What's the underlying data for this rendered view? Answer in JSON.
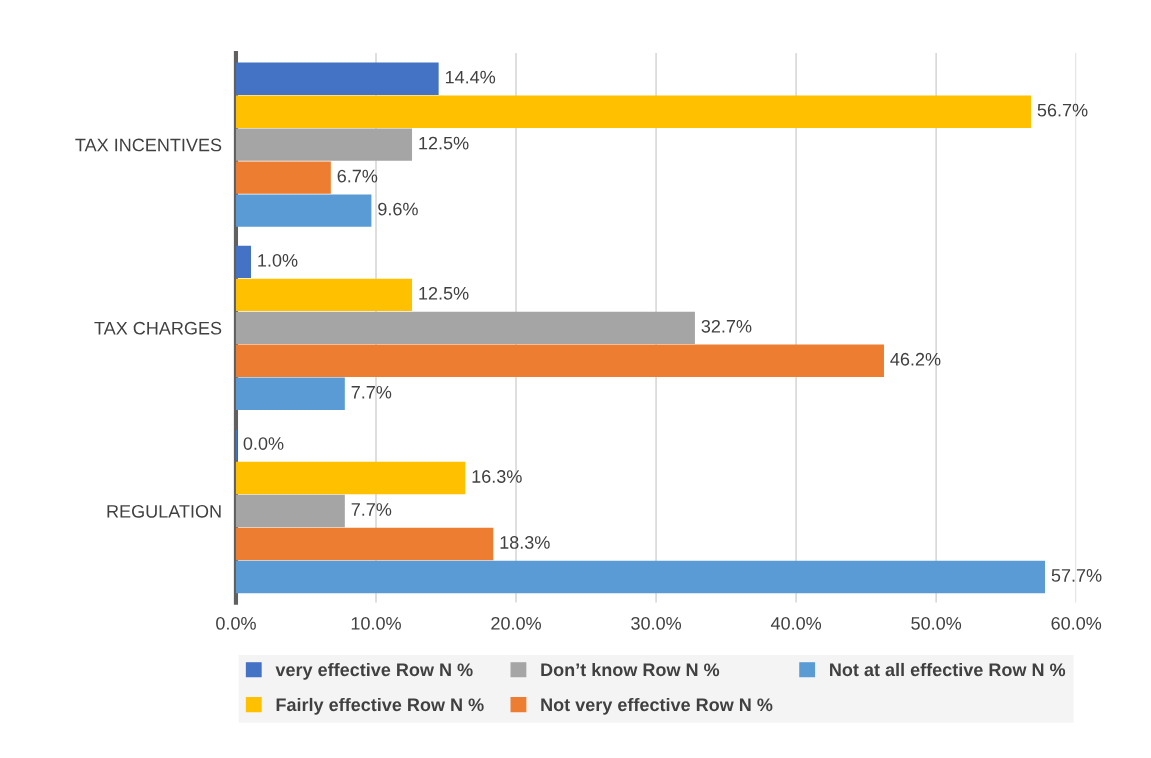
{
  "chart_data": {
    "type": "bar",
    "orientation": "horizontal",
    "categories": [
      "TAX INCENTIVES",
      "TAX CHARGES",
      "REGULATION"
    ],
    "series": [
      {
        "name": "very effective Row N %",
        "color": "#4472c4",
        "values": [
          14.4,
          1.0,
          0.0
        ],
        "value_labels": [
          "14.4%",
          "1.0%",
          "0.0%"
        ]
      },
      {
        "name": "Fairly effective Row N %",
        "color": "#ffc000",
        "values": [
          56.7,
          12.5,
          16.3
        ],
        "value_labels": [
          "56.7%",
          "12.5%",
          "16.3%"
        ]
      },
      {
        "name": "Don’t know Row N %",
        "color": "#a5a5a5",
        "values": [
          12.5,
          32.7,
          7.7
        ],
        "value_labels": [
          "12.5%",
          "32.7%",
          "7.7%"
        ]
      },
      {
        "name": "Not very effective Row N %",
        "color": "#ed7d31",
        "values": [
          6.7,
          46.2,
          18.3
        ],
        "value_labels": [
          "6.7%",
          "46.2%",
          "18.3%"
        ]
      },
      {
        "name": "Not at all effective Row N %",
        "color": "#5b9bd5",
        "values": [
          9.6,
          7.7,
          57.7
        ],
        "value_labels": [
          "9.6%",
          "7.7%",
          "57.7%"
        ]
      }
    ],
    "xlim": [
      0,
      60
    ],
    "xticks": [
      {
        "value": 0,
        "label": "0.0%"
      },
      {
        "value": 10,
        "label": "10.0%"
      },
      {
        "value": 20,
        "label": "20.0%"
      },
      {
        "value": 30,
        "label": "30.0%"
      },
      {
        "value": 40,
        "label": "40.0%"
      },
      {
        "value": 50,
        "label": "50.0%"
      },
      {
        "value": 60,
        "label": "60.0%"
      }
    ],
    "grid": "x",
    "legend": "bottom"
  }
}
